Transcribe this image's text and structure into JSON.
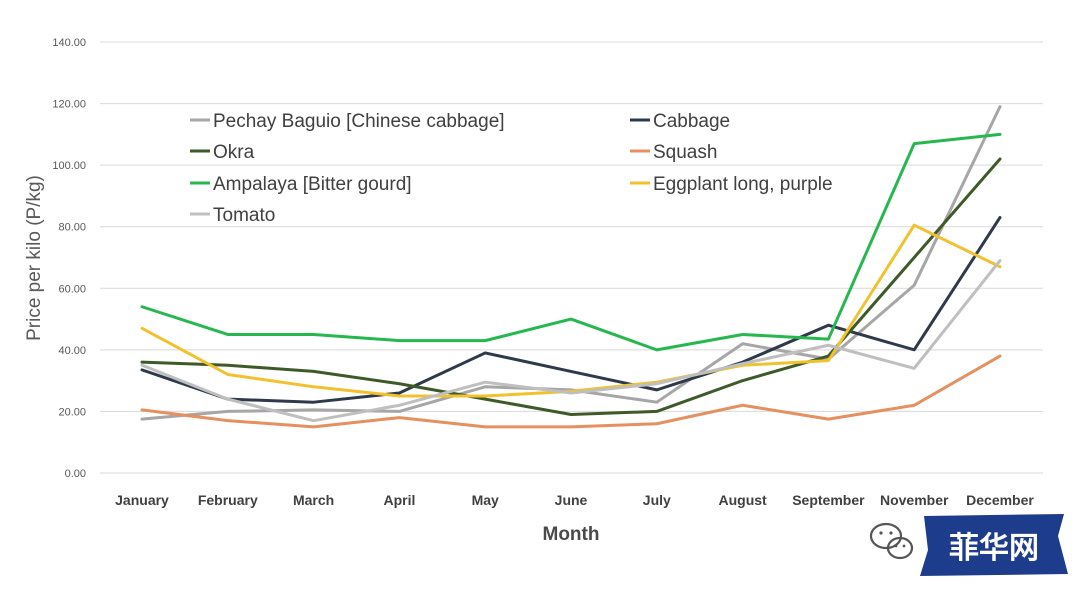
{
  "chart_data": {
    "type": "line",
    "title": "",
    "xlabel": "Month",
    "ylabel": "Price per kilo (P/kg)",
    "ylim": [
      0,
      140
    ],
    "yticks": [
      "0.00",
      "20.00",
      "40.00",
      "60.00",
      "80.00",
      "100.00",
      "120.00",
      "140.00"
    ],
    "ytick_values": [
      0,
      20,
      40,
      60,
      80,
      100,
      120,
      140
    ],
    "grid": "horizontal",
    "legend_position": "top-left",
    "categories": [
      "January",
      "February",
      "March",
      "April",
      "May",
      "June",
      "July",
      "August",
      "September",
      "November",
      "December"
    ],
    "series": [
      {
        "name": "Pechay Baguio [Chinese cabbage]",
        "color": "#a6a6a6",
        "values": [
          17.5,
          20,
          20.5,
          20,
          28,
          27,
          23,
          42,
          37,
          61,
          119
        ]
      },
      {
        "name": "Cabbage",
        "color": "#2e3a4a",
        "values": [
          33.5,
          24,
          23,
          26,
          39,
          33,
          27,
          36,
          48,
          40,
          83
        ]
      },
      {
        "name": "Okra",
        "color": "#3e5a28",
        "values": [
          36,
          35,
          33,
          29,
          24,
          19,
          20,
          30,
          38,
          70,
          102
        ]
      },
      {
        "name": "Squash",
        "color": "#e59060",
        "values": [
          20.5,
          17,
          15,
          18,
          15,
          15,
          16,
          22,
          17.5,
          22,
          38
        ]
      },
      {
        "name": "Ampalaya [Bitter gourd]",
        "color": "#26b84f",
        "values": [
          54,
          45,
          45,
          43,
          43,
          50,
          40,
          45,
          43.5,
          107,
          110
        ]
      },
      {
        "name": "Eggplant long, purple",
        "color": "#f2c12e",
        "values": [
          47,
          32,
          28,
          25,
          25,
          26.5,
          29.5,
          35,
          36.5,
          80.5,
          67
        ]
      },
      {
        "name": "Tomato",
        "color": "#bfbfbf",
        "values": [
          35,
          24,
          17,
          22,
          29.5,
          26,
          29,
          35.5,
          41.5,
          34,
          69
        ]
      }
    ]
  },
  "watermark": {
    "brand": "菲华网",
    "icon": "wechat-icon",
    "icon_color": "#555555",
    "badge_color": "#1e3c8c"
  }
}
